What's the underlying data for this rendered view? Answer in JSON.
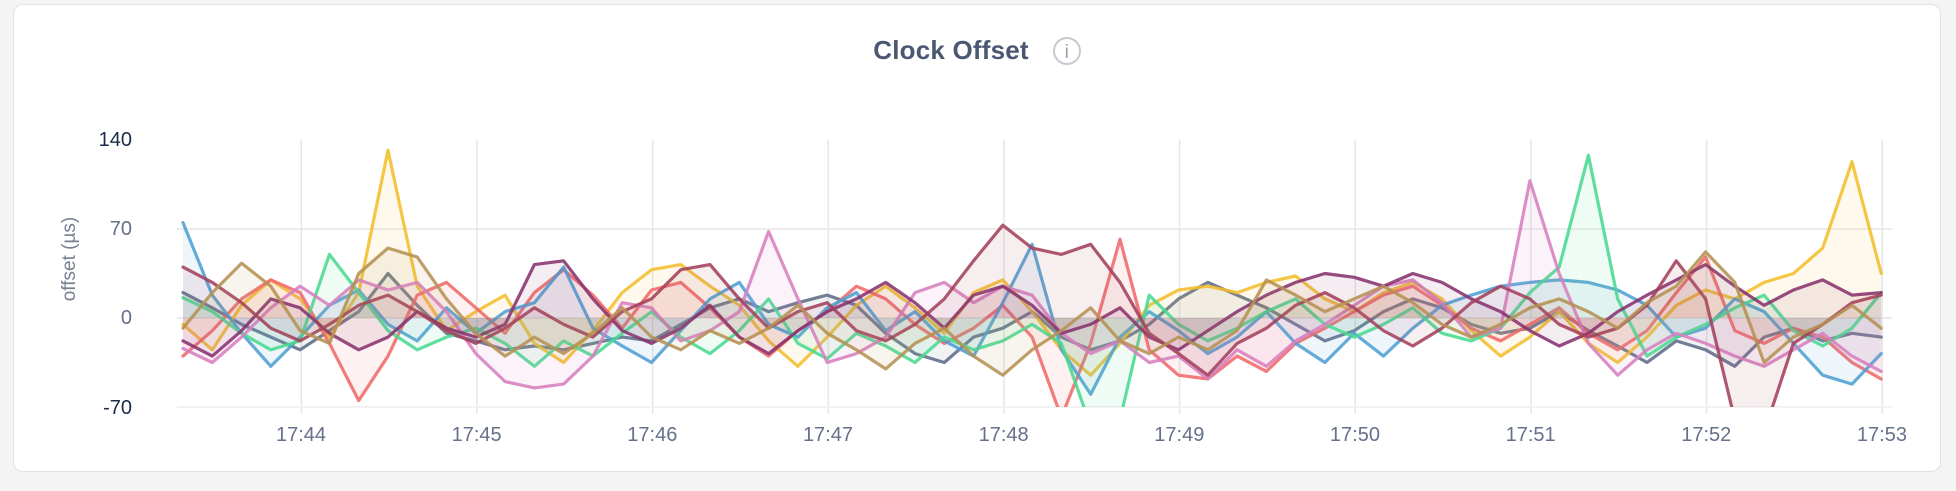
{
  "header": {
    "title": "Clock Offset",
    "info_icon_glyph": "i"
  },
  "colors": {
    "title_text": "#4a5872",
    "tick_text": "#66708a",
    "tick_text_extreme": "#1c2b4a",
    "gridline": "#e6e6e7",
    "card_background": "#ffffff",
    "page_background": "#f4f4f5"
  },
  "chart_data": {
    "type": "line",
    "title": "Clock Offset",
    "xlabel": "",
    "ylabel": "offset (µs)",
    "ylim": [
      -70,
      140
    ],
    "grid": true,
    "legend": "none",
    "x_start_label": "17:43:20",
    "sample_interval_seconds": 10,
    "x_ticks": [
      "17:44",
      "17:45",
      "17:46",
      "17:47",
      "17:48",
      "17:49",
      "17:50",
      "17:51",
      "17:52",
      "17:53"
    ],
    "y_ticks": [
      {
        "label": "140",
        "value": 140,
        "extreme": true
      },
      {
        "label": "70",
        "value": 70,
        "extreme": false
      },
      {
        "label": "0",
        "value": 0,
        "extreme": false
      },
      {
        "label": "-70",
        "value": -70,
        "extreme": true
      }
    ],
    "series": [
      {
        "color": "#5F6C87",
        "values": [
          20,
          8,
          -5,
          -15,
          -25,
          -10,
          5,
          35,
          10,
          -12,
          -18,
          -25,
          -22,
          -25,
          -20,
          -15,
          -18,
          -5,
          8,
          15,
          5,
          12,
          18,
          10,
          -12,
          -28,
          -35,
          -15,
          -8,
          5,
          -15,
          -25,
          -18,
          -5,
          15,
          28,
          18,
          8,
          -5,
          -18,
          -10,
          5,
          15,
          8,
          -5,
          -12,
          -8,
          5,
          -10,
          -22,
          -35,
          -18,
          -25,
          -38,
          -15,
          -8,
          -18,
          -12,
          -15
        ]
      },
      {
        "color": "#F2BE2C",
        "values": [
          -5,
          -25,
          10,
          30,
          15,
          -15,
          20,
          132,
          25,
          -10,
          5,
          18,
          -20,
          -35,
          -10,
          20,
          38,
          42,
          25,
          10,
          -18,
          -38,
          -15,
          10,
          25,
          8,
          -12,
          20,
          30,
          5,
          -25,
          -45,
          -20,
          10,
          22,
          25,
          20,
          28,
          33,
          15,
          5,
          20,
          28,
          15,
          -10,
          -30,
          -15,
          5,
          -20,
          -35,
          -15,
          10,
          22,
          15,
          28,
          35,
          55,
          123,
          35
        ]
      },
      {
        "color": "#F16969",
        "values": [
          -30,
          -10,
          15,
          30,
          20,
          -20,
          -65,
          -30,
          18,
          28,
          8,
          -12,
          20,
          38,
          18,
          -8,
          22,
          28,
          8,
          -15,
          -30,
          -10,
          5,
          25,
          15,
          -5,
          -20,
          -8,
          10,
          -15,
          -78,
          -20,
          62,
          -25,
          -45,
          -48,
          -30,
          -42,
          -20,
          -8,
          5,
          18,
          25,
          10,
          -8,
          -18,
          -5,
          8,
          -12,
          -25,
          -10,
          20,
          48,
          -10,
          -20,
          -8,
          -15,
          -35,
          -48
        ]
      },
      {
        "color": "#4E9FD1",
        "values": [
          75,
          18,
          -12,
          -38,
          -15,
          10,
          22,
          -5,
          -18,
          8,
          -12,
          5,
          12,
          40,
          -8,
          -22,
          -35,
          -10,
          15,
          28,
          -5,
          -15,
          8,
          20,
          -10,
          5,
          -18,
          -30,
          12,
          58,
          -25,
          -60,
          -15,
          5,
          -10,
          -28,
          -15,
          5,
          -20,
          -35,
          -12,
          -30,
          -8,
          10,
          18,
          25,
          28,
          30,
          28,
          22,
          10,
          -15,
          -8,
          15,
          5,
          -20,
          -45,
          -52,
          -28
        ]
      },
      {
        "color": "#49D990",
        "values": [
          16,
          5,
          -12,
          -25,
          -18,
          50,
          20,
          -10,
          -25,
          -15,
          -8,
          -20,
          -38,
          -18,
          -30,
          -12,
          5,
          -15,
          -28,
          -10,
          15,
          -20,
          -32,
          -12,
          -22,
          -35,
          -15,
          -25,
          -18,
          -5,
          -20,
          -85,
          -80,
          18,
          -5,
          -18,
          -8,
          5,
          15,
          -5,
          -15,
          -5,
          8,
          -12,
          -18,
          -8,
          20,
          40,
          128,
          15,
          -30,
          -15,
          -5,
          8,
          18,
          -10,
          -22,
          -8,
          20
        ]
      },
      {
        "color": "#D77FBF",
        "values": [
          -24,
          -35,
          -15,
          8,
          25,
          10,
          30,
          22,
          28,
          5,
          -28,
          -50,
          -55,
          -52,
          -30,
          12,
          8,
          -18,
          -10,
          5,
          68,
          15,
          -35,
          -28,
          -15,
          20,
          28,
          12,
          25,
          18,
          -12,
          -28,
          -18,
          -35,
          -30,
          -48,
          -25,
          -38,
          -18,
          -5,
          10,
          25,
          30,
          12,
          -15,
          -8,
          108,
          35,
          -20,
          -45,
          -25,
          -12,
          -20,
          -30,
          -38,
          -25,
          -12,
          -30,
          -42
        ]
      },
      {
        "color": "#87326D",
        "values": [
          -18,
          -30,
          -10,
          15,
          8,
          -12,
          -25,
          -15,
          5,
          -8,
          -15,
          -5,
          42,
          45,
          15,
          -10,
          -20,
          -8,
          10,
          -15,
          -28,
          -10,
          5,
          15,
          28,
          12,
          -8,
          18,
          25,
          10,
          -12,
          -5,
          8,
          -15,
          -25,
          -10,
          5,
          18,
          28,
          35,
          32,
          25,
          35,
          28,
          15,
          5,
          -10,
          -22,
          -12,
          5,
          18,
          30,
          42,
          25,
          10,
          22,
          30,
          18,
          20
        ]
      },
      {
        "color": "#A3415B",
        "values": [
          40,
          28,
          12,
          -8,
          -18,
          -5,
          10,
          18,
          5,
          -10,
          -20,
          -8,
          8,
          -5,
          -15,
          5,
          15,
          38,
          42,
          15,
          -8,
          5,
          12,
          -10,
          -18,
          -5,
          15,
          45,
          73,
          55,
          50,
          58,
          28,
          -12,
          -28,
          -45,
          -20,
          -8,
          10,
          20,
          8,
          -10,
          -22,
          -8,
          12,
          25,
          15,
          -5,
          -15,
          -8,
          10,
          45,
          15,
          -80,
          -90,
          -20,
          -5,
          12,
          18
        ]
      },
      {
        "color": "#B59153",
        "values": [
          -8,
          20,
          43,
          25,
          -10,
          -20,
          35,
          55,
          48,
          15,
          -12,
          -30,
          -15,
          -28,
          -12,
          8,
          -15,
          -25,
          -10,
          -20,
          -8,
          10,
          -12,
          -25,
          -40,
          -20,
          -8,
          -30,
          -45,
          -25,
          -10,
          8,
          -18,
          -28,
          -15,
          -25,
          -10,
          30,
          18,
          5,
          15,
          25,
          12,
          -5,
          -15,
          -5,
          8,
          15,
          5,
          -8,
          12,
          25,
          52,
          28,
          -35,
          -15,
          -5,
          10,
          -8
        ]
      }
    ]
  }
}
